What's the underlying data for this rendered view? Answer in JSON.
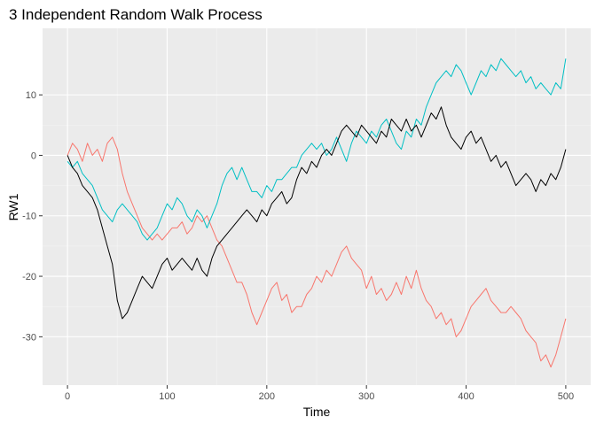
{
  "chart_data": {
    "type": "line",
    "title": "3 Independent Random Walk Process",
    "xlabel": "Time",
    "ylabel": "RW1",
    "xlim": [
      -25,
      525
    ],
    "ylim": [
      -38,
      21
    ],
    "x_ticks": [
      0,
      100,
      200,
      300,
      400,
      500
    ],
    "y_ticks": [
      -30,
      -20,
      -10,
      0,
      10
    ],
    "grid": true,
    "legend": "none",
    "colors": {
      "panel_bg": "#EBEBEB",
      "grid_major": "#FFFFFF",
      "grid_minor": "#F4F4F4",
      "tick": "#333333"
    },
    "series": [
      {
        "color": "#F8766D",
        "points": [
          [
            0,
            0
          ],
          [
            5,
            2
          ],
          [
            10,
            1
          ],
          [
            15,
            -1
          ],
          [
            20,
            2
          ],
          [
            25,
            0
          ],
          [
            30,
            1
          ],
          [
            35,
            -1
          ],
          [
            40,
            2
          ],
          [
            45,
            3
          ],
          [
            50,
            1
          ],
          [
            55,
            -3
          ],
          [
            60,
            -6
          ],
          [
            65,
            -8
          ],
          [
            70,
            -10
          ],
          [
            75,
            -12
          ],
          [
            80,
            -13
          ],
          [
            85,
            -14
          ],
          [
            90,
            -13
          ],
          [
            95,
            -14
          ],
          [
            100,
            -13
          ],
          [
            105,
            -12
          ],
          [
            110,
            -12
          ],
          [
            115,
            -11
          ],
          [
            120,
            -13
          ],
          [
            125,
            -12
          ],
          [
            130,
            -10
          ],
          [
            135,
            -11
          ],
          [
            140,
            -10
          ],
          [
            145,
            -12
          ],
          [
            150,
            -14
          ],
          [
            155,
            -15
          ],
          [
            160,
            -17
          ],
          [
            165,
            -19
          ],
          [
            170,
            -21
          ],
          [
            175,
            -21
          ],
          [
            180,
            -23
          ],
          [
            185,
            -26
          ],
          [
            190,
            -28
          ],
          [
            195,
            -26
          ],
          [
            200,
            -24
          ],
          [
            205,
            -22
          ],
          [
            210,
            -21
          ],
          [
            215,
            -24
          ],
          [
            220,
            -23
          ],
          [
            225,
            -26
          ],
          [
            230,
            -25
          ],
          [
            235,
            -25
          ],
          [
            240,
            -23
          ],
          [
            245,
            -22
          ],
          [
            250,
            -20
          ],
          [
            255,
            -21
          ],
          [
            260,
            -19
          ],
          [
            265,
            -20
          ],
          [
            270,
            -18
          ],
          [
            275,
            -16
          ],
          [
            280,
            -15
          ],
          [
            285,
            -17
          ],
          [
            290,
            -18
          ],
          [
            295,
            -19
          ],
          [
            300,
            -22
          ],
          [
            305,
            -20
          ],
          [
            310,
            -23
          ],
          [
            315,
            -22
          ],
          [
            320,
            -24
          ],
          [
            325,
            -23
          ],
          [
            330,
            -21
          ],
          [
            335,
            -23
          ],
          [
            340,
            -20
          ],
          [
            345,
            -22
          ],
          [
            350,
            -19
          ],
          [
            355,
            -22
          ],
          [
            360,
            -24
          ],
          [
            365,
            -25
          ],
          [
            370,
            -27
          ],
          [
            375,
            -26
          ],
          [
            380,
            -28
          ],
          [
            385,
            -27
          ],
          [
            390,
            -30
          ],
          [
            395,
            -29
          ],
          [
            400,
            -27
          ],
          [
            405,
            -25
          ],
          [
            410,
            -24
          ],
          [
            415,
            -23
          ],
          [
            420,
            -22
          ],
          [
            425,
            -24
          ],
          [
            430,
            -25
          ],
          [
            435,
            -26
          ],
          [
            440,
            -26
          ],
          [
            445,
            -25
          ],
          [
            450,
            -26
          ],
          [
            455,
            -27
          ],
          [
            460,
            -29
          ],
          [
            465,
            -30
          ],
          [
            470,
            -31
          ],
          [
            475,
            -34
          ],
          [
            480,
            -33
          ],
          [
            485,
            -35
          ],
          [
            490,
            -33
          ],
          [
            495,
            -30
          ],
          [
            500,
            -27
          ]
        ]
      },
      {
        "color": "#00BFC4",
        "points": [
          [
            0,
            -1
          ],
          [
            5,
            -2
          ],
          [
            10,
            -1
          ],
          [
            15,
            -3
          ],
          [
            20,
            -4
          ],
          [
            25,
            -5
          ],
          [
            30,
            -7
          ],
          [
            35,
            -9
          ],
          [
            40,
            -10
          ],
          [
            45,
            -11
          ],
          [
            50,
            -9
          ],
          [
            55,
            -8
          ],
          [
            60,
            -9
          ],
          [
            65,
            -10
          ],
          [
            70,
            -11
          ],
          [
            75,
            -13
          ],
          [
            80,
            -14
          ],
          [
            85,
            -13
          ],
          [
            90,
            -12
          ],
          [
            95,
            -10
          ],
          [
            100,
            -8
          ],
          [
            105,
            -9
          ],
          [
            110,
            -7
          ],
          [
            115,
            -8
          ],
          [
            120,
            -10
          ],
          [
            125,
            -11
          ],
          [
            130,
            -9
          ],
          [
            135,
            -10
          ],
          [
            140,
            -12
          ],
          [
            145,
            -10
          ],
          [
            150,
            -8
          ],
          [
            155,
            -5
          ],
          [
            160,
            -3
          ],
          [
            165,
            -2
          ],
          [
            170,
            -4
          ],
          [
            175,
            -2
          ],
          [
            180,
            -4
          ],
          [
            185,
            -6
          ],
          [
            190,
            -6
          ],
          [
            195,
            -7
          ],
          [
            200,
            -5
          ],
          [
            205,
            -6
          ],
          [
            210,
            -4
          ],
          [
            215,
            -4
          ],
          [
            220,
            -3
          ],
          [
            225,
            -2
          ],
          [
            230,
            -2
          ],
          [
            235,
            0
          ],
          [
            240,
            1
          ],
          [
            245,
            2
          ],
          [
            250,
            1
          ],
          [
            255,
            2
          ],
          [
            260,
            0
          ],
          [
            265,
            1
          ],
          [
            270,
            3
          ],
          [
            275,
            1
          ],
          [
            280,
            -1
          ],
          [
            285,
            2
          ],
          [
            290,
            4
          ],
          [
            295,
            3
          ],
          [
            300,
            2
          ],
          [
            305,
            4
          ],
          [
            310,
            3
          ],
          [
            315,
            5
          ],
          [
            320,
            6
          ],
          [
            325,
            4
          ],
          [
            330,
            2
          ],
          [
            335,
            1
          ],
          [
            340,
            4
          ],
          [
            345,
            3
          ],
          [
            350,
            6
          ],
          [
            355,
            5
          ],
          [
            360,
            8
          ],
          [
            365,
            10
          ],
          [
            370,
            12
          ],
          [
            375,
            13
          ],
          [
            380,
            14
          ],
          [
            385,
            13
          ],
          [
            390,
            15
          ],
          [
            395,
            14
          ],
          [
            400,
            12
          ],
          [
            405,
            10
          ],
          [
            410,
            12
          ],
          [
            415,
            14
          ],
          [
            420,
            13
          ],
          [
            425,
            15
          ],
          [
            430,
            14
          ],
          [
            435,
            16
          ],
          [
            440,
            15
          ],
          [
            445,
            14
          ],
          [
            450,
            13
          ],
          [
            455,
            14
          ],
          [
            460,
            12
          ],
          [
            465,
            13
          ],
          [
            470,
            11
          ],
          [
            475,
            12
          ],
          [
            480,
            11
          ],
          [
            485,
            10
          ],
          [
            490,
            12
          ],
          [
            495,
            11
          ],
          [
            500,
            16
          ]
        ]
      },
      {
        "color": "#000000",
        "points": [
          [
            0,
            0
          ],
          [
            5,
            -2
          ],
          [
            10,
            -3
          ],
          [
            15,
            -5
          ],
          [
            20,
            -6
          ],
          [
            25,
            -7
          ],
          [
            30,
            -9
          ],
          [
            35,
            -12
          ],
          [
            40,
            -15
          ],
          [
            45,
            -18
          ],
          [
            50,
            -24
          ],
          [
            55,
            -27
          ],
          [
            60,
            -26
          ],
          [
            65,
            -24
          ],
          [
            70,
            -22
          ],
          [
            75,
            -20
          ],
          [
            80,
            -21
          ],
          [
            85,
            -22
          ],
          [
            90,
            -20
          ],
          [
            95,
            -18
          ],
          [
            100,
            -17
          ],
          [
            105,
            -19
          ],
          [
            110,
            -18
          ],
          [
            115,
            -17
          ],
          [
            120,
            -18
          ],
          [
            125,
            -19
          ],
          [
            130,
            -17
          ],
          [
            135,
            -19
          ],
          [
            140,
            -20
          ],
          [
            145,
            -17
          ],
          [
            150,
            -15
          ],
          [
            155,
            -14
          ],
          [
            160,
            -13
          ],
          [
            165,
            -12
          ],
          [
            170,
            -11
          ],
          [
            175,
            -10
          ],
          [
            180,
            -9
          ],
          [
            185,
            -10
          ],
          [
            190,
            -11
          ],
          [
            195,
            -9
          ],
          [
            200,
            -10
          ],
          [
            205,
            -8
          ],
          [
            210,
            -7
          ],
          [
            215,
            -6
          ],
          [
            220,
            -8
          ],
          [
            225,
            -7
          ],
          [
            230,
            -4
          ],
          [
            235,
            -2
          ],
          [
            240,
            -3
          ],
          [
            245,
            -1
          ],
          [
            250,
            -2
          ],
          [
            255,
            0
          ],
          [
            260,
            1
          ],
          [
            265,
            0
          ],
          [
            270,
            2
          ],
          [
            275,
            4
          ],
          [
            280,
            5
          ],
          [
            285,
            4
          ],
          [
            290,
            3
          ],
          [
            295,
            5
          ],
          [
            300,
            4
          ],
          [
            305,
            3
          ],
          [
            310,
            2
          ],
          [
            315,
            4
          ],
          [
            320,
            3
          ],
          [
            325,
            6
          ],
          [
            330,
            5
          ],
          [
            335,
            4
          ],
          [
            340,
            6
          ],
          [
            345,
            4
          ],
          [
            350,
            5
          ],
          [
            355,
            3
          ],
          [
            360,
            5
          ],
          [
            365,
            7
          ],
          [
            370,
            6
          ],
          [
            375,
            8
          ],
          [
            380,
            5
          ],
          [
            385,
            3
          ],
          [
            390,
            2
          ],
          [
            395,
            1
          ],
          [
            400,
            3
          ],
          [
            405,
            4
          ],
          [
            410,
            2
          ],
          [
            415,
            3
          ],
          [
            420,
            1
          ],
          [
            425,
            -1
          ],
          [
            430,
            0
          ],
          [
            435,
            -2
          ],
          [
            440,
            -1
          ],
          [
            445,
            -3
          ],
          [
            450,
            -5
          ],
          [
            455,
            -4
          ],
          [
            460,
            -3
          ],
          [
            465,
            -4
          ],
          [
            470,
            -6
          ],
          [
            475,
            -4
          ],
          [
            480,
            -5
          ],
          [
            485,
            -3
          ],
          [
            490,
            -4
          ],
          [
            495,
            -2
          ],
          [
            500,
            1
          ]
        ]
      }
    ]
  }
}
